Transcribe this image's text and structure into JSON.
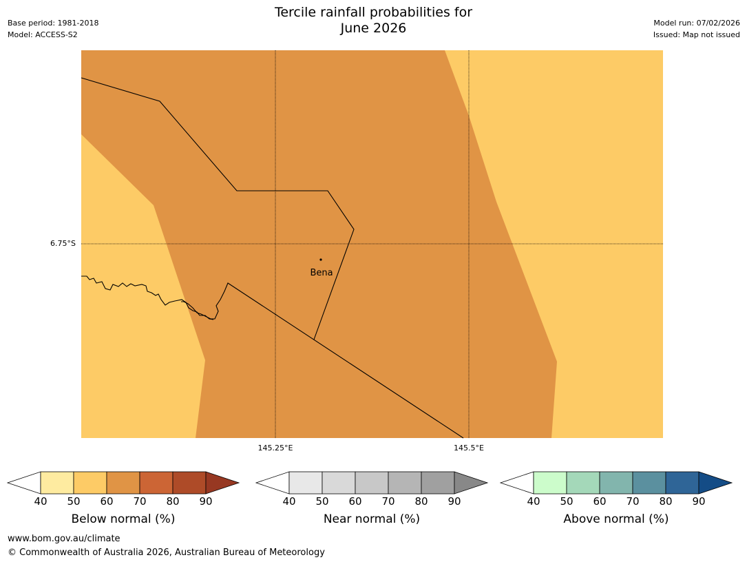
{
  "header": {
    "title_line1": "Tercile rainfall probabilities for",
    "title_line2": "June 2026",
    "base_period": "Base period: 1981-2018",
    "model": "Model: ACCESS-S2",
    "model_run": "Model run: 07/02/2026",
    "issued": "Issued: Map not issued"
  },
  "map": {
    "lat_label": "6.75°S",
    "lon_labels": [
      "145.25°E",
      "145.5°E"
    ],
    "place_label": "Bena",
    "colors": {
      "below_50_60": "#fdcb66",
      "below_60_70": "#e09445",
      "border": "#000000"
    }
  },
  "colorbars": [
    {
      "label": "Below normal (%)",
      "ticks": [
        "40",
        "50",
        "60",
        "70",
        "80",
        "90"
      ],
      "colors": [
        "#ffffff",
        "#feeba0",
        "#fdcb66",
        "#e09445",
        "#cc6535",
        "#ae4b28",
        "#973822"
      ]
    },
    {
      "label": "Near normal (%)",
      "ticks": [
        "40",
        "50",
        "60",
        "70",
        "80",
        "90"
      ],
      "colors": [
        "#ffffff",
        "#e8e8e8",
        "#d9d9d9",
        "#c8c8c8",
        "#b5b5b5",
        "#a0a0a0",
        "#888888"
      ]
    },
    {
      "label": "Above normal (%)",
      "ticks": [
        "40",
        "50",
        "60",
        "70",
        "80",
        "90"
      ],
      "colors": [
        "#ffffff",
        "#ccfccb",
        "#a4d8b9",
        "#82b5ad",
        "#5b909f",
        "#2f6597",
        "#144c86"
      ]
    }
  ],
  "footer": {
    "url": "www.bom.gov.au/climate",
    "copyright": "© Commonwealth of Australia 2026, Australian Bureau of Meteorology"
  }
}
